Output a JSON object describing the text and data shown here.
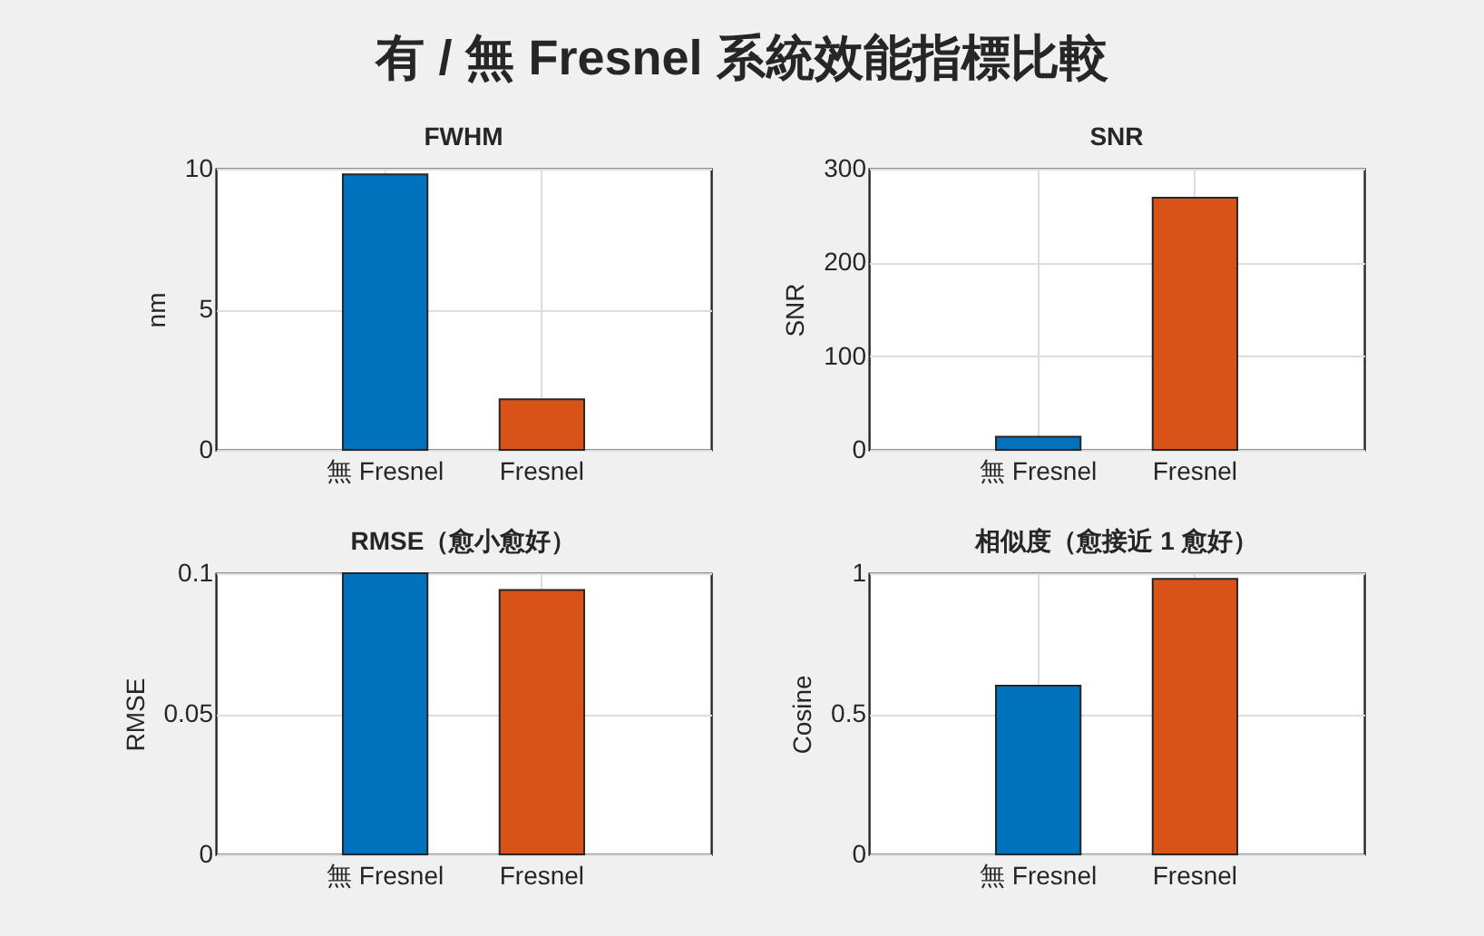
{
  "chart_data": [
    {
      "type": "other",
      "title": "有 / 無 Fresnel 系統效能指標比較"
    },
    {
      "type": "bar",
      "title": "FWHM",
      "categories": [
        "無 Fresnel",
        "Fresnel"
      ],
      "values": [
        9.8,
        1.8
      ],
      "colors": [
        "#0072bd",
        "#d95319"
      ],
      "ylabel": "nm",
      "ylim": [
        0,
        10
      ],
      "yticks": [
        0,
        5,
        10
      ],
      "grid": true
    },
    {
      "type": "bar",
      "title": "SNR",
      "categories": [
        "無 Fresnel",
        "Fresnel"
      ],
      "values": [
        14,
        269
      ],
      "colors": [
        "#0072bd",
        "#d95319"
      ],
      "ylabel": "SNR",
      "ylim": [
        0,
        300
      ],
      "yticks": [
        0,
        100,
        200,
        300
      ],
      "grid": true
    },
    {
      "type": "bar",
      "title": "RMSE（愈小愈好）",
      "categories": [
        "無 Fresnel",
        "Fresnel"
      ],
      "values": [
        0.1,
        0.094
      ],
      "colors": [
        "#0072bd",
        "#d95319"
      ],
      "ylabel": "RMSE",
      "ylim": [
        0,
        0.1
      ],
      "yticks": [
        0,
        0.05,
        0.1
      ],
      "grid": true
    },
    {
      "type": "bar",
      "title": "相似度（愈接近 1 愈好）",
      "categories": [
        "無 Fresnel",
        "Fresnel"
      ],
      "values": [
        0.6,
        0.98
      ],
      "colors": [
        "#0072bd",
        "#d95319"
      ],
      "ylabel": "Cosine",
      "ylim": [
        0,
        1
      ],
      "yticks": [
        0,
        0.5,
        1
      ],
      "grid": true
    }
  ]
}
